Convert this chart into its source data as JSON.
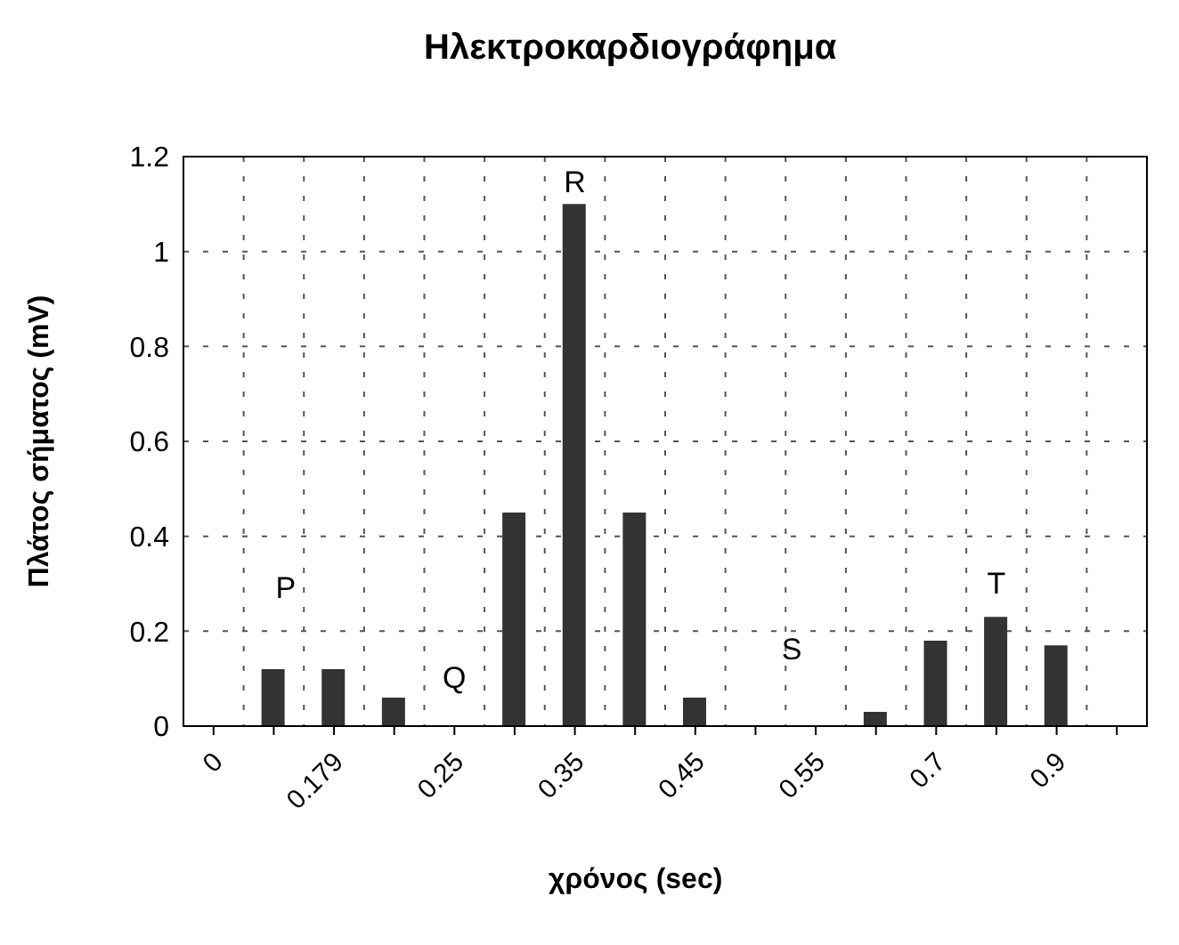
{
  "chart_data": {
    "type": "bar",
    "title": "Ηλεκτροκαρδιογράφημα",
    "xlabel": "χρόνος (sec)",
    "ylabel": "Πλάτος σήματος (mV)",
    "categories": [
      "0",
      null,
      "0.179",
      null,
      "0.25",
      null,
      "0.35",
      null,
      "0.45",
      null,
      "0.55",
      null,
      "0.7",
      null,
      "0.9",
      null
    ],
    "values": [
      0,
      0.12,
      0.12,
      0.06,
      0,
      0.45,
      1.1,
      0.45,
      0.06,
      0,
      0,
      0.03,
      0.18,
      0.23,
      0.17,
      0
    ],
    "color": "#333333",
    "ylim": [
      0,
      1.2
    ],
    "yticks": [
      0,
      0.2,
      0.4,
      0.6,
      0.8,
      1,
      1.2
    ],
    "grid": true,
    "annotations": [
      "P",
      "Q",
      "R",
      "S",
      "T"
    ]
  }
}
